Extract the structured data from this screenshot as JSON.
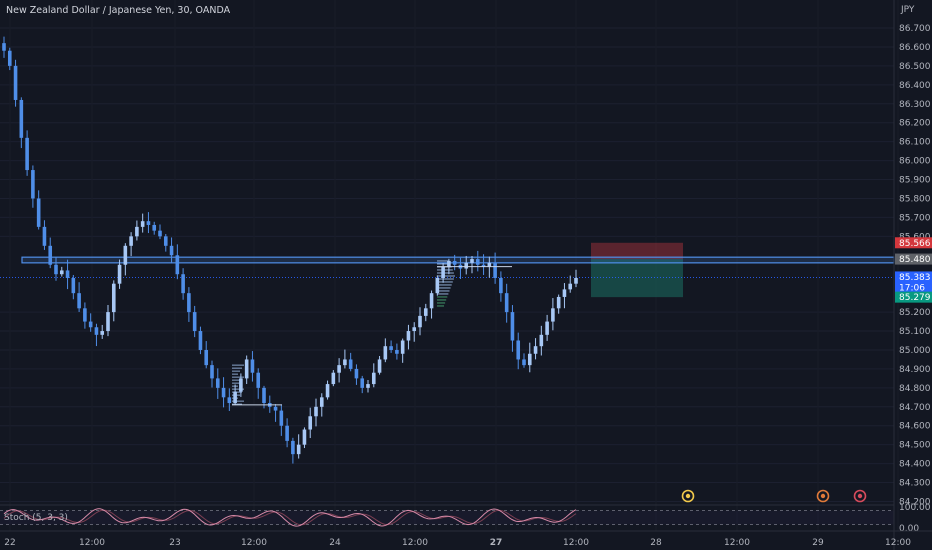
{
  "header": {
    "title": "New Zealand Dollar / Japanese Yen, 30, OANDA"
  },
  "colors": {
    "background": "#131722",
    "candle": "#4f8ee8",
    "candle_light": "#a8c8f5",
    "zone": "#4f8ee8",
    "stop": "#b2353d",
    "target": "#1c6f62",
    "stoch_k": "#d68aa8",
    "stoch_d": "#7a3e52"
  },
  "chart_data": {
    "type": "candlestick",
    "currency_label": "JPY",
    "y_ticks": [
      "86.700",
      "86.600",
      "86.500",
      "86.400",
      "86.300",
      "86.200",
      "86.100",
      "86.000",
      "85.900",
      "85.800",
      "85.700",
      "85.600",
      "85.200",
      "85.100",
      "85.000",
      "84.900",
      "84.800",
      "84.700",
      "84.600",
      "84.500",
      "84.400",
      "84.300",
      "84.200"
    ],
    "ylim": [
      84.16,
      86.79
    ],
    "x_labels": [
      "22",
      "12:00",
      "23",
      "12:00",
      "24",
      "12:00",
      "27",
      "12:00",
      "28",
      "12:00",
      "29",
      "12:00"
    ],
    "series": [
      {
        "values": [
          86.58,
          86.5,
          86.32,
          86.12,
          85.95,
          85.8,
          85.65,
          85.55,
          85.45,
          85.4,
          85.42,
          85.38,
          85.3,
          85.22,
          85.15,
          85.12,
          85.08,
          85.1,
          85.2,
          85.35,
          85.45,
          85.55,
          85.6,
          85.65,
          85.68,
          85.66,
          85.63,
          85.6,
          85.55,
          85.5,
          85.4,
          85.3,
          85.2,
          85.1,
          85.0,
          84.92,
          84.85,
          84.8,
          84.75,
          84.72,
          84.78,
          84.85,
          84.95,
          84.88,
          84.8,
          84.72,
          84.7,
          84.68,
          84.6,
          84.52,
          84.45,
          84.5,
          84.58,
          84.65,
          84.7,
          84.75,
          84.82,
          84.88,
          84.92,
          84.95,
          84.9,
          84.85,
          84.8,
          84.82,
          84.88,
          84.95,
          85.02,
          85.0,
          84.98,
          85.05,
          85.1,
          85.12,
          85.18,
          85.22,
          85.3,
          85.38,
          85.44,
          85.47,
          85.45,
          85.43,
          85.46,
          85.48,
          85.45,
          85.44,
          85.46,
          85.38,
          85.3,
          85.2,
          85.05,
          84.95,
          84.92,
          84.98,
          85.02,
          85.08,
          85.15,
          85.22,
          85.28,
          85.32,
          85.35,
          85.38
        ],
        "current": 85.383
      }
    ],
    "zone": {
      "top": 85.49,
      "bottom": 85.46
    },
    "current_line": 85.383,
    "price_tags": [
      {
        "value": 85.566,
        "text": "85.566",
        "color": "#d4373d"
      },
      {
        "value": 85.48,
        "text": "85.480",
        "color": "#5f6268"
      },
      {
        "value": 85.383,
        "text": "85.383",
        "color": "#2962ff"
      },
      {
        "value": 85.279,
        "text": "85.279",
        "color": "#089981"
      }
    ],
    "countdown": "17:06",
    "position": {
      "entry": 85.48,
      "stop": 85.566,
      "target": 85.279
    },
    "stoch": {
      "label": "Stoch (5, 3, 3)",
      "ticks": [
        "100.00",
        "0.00"
      ],
      "levels": [
        80,
        20
      ]
    }
  }
}
